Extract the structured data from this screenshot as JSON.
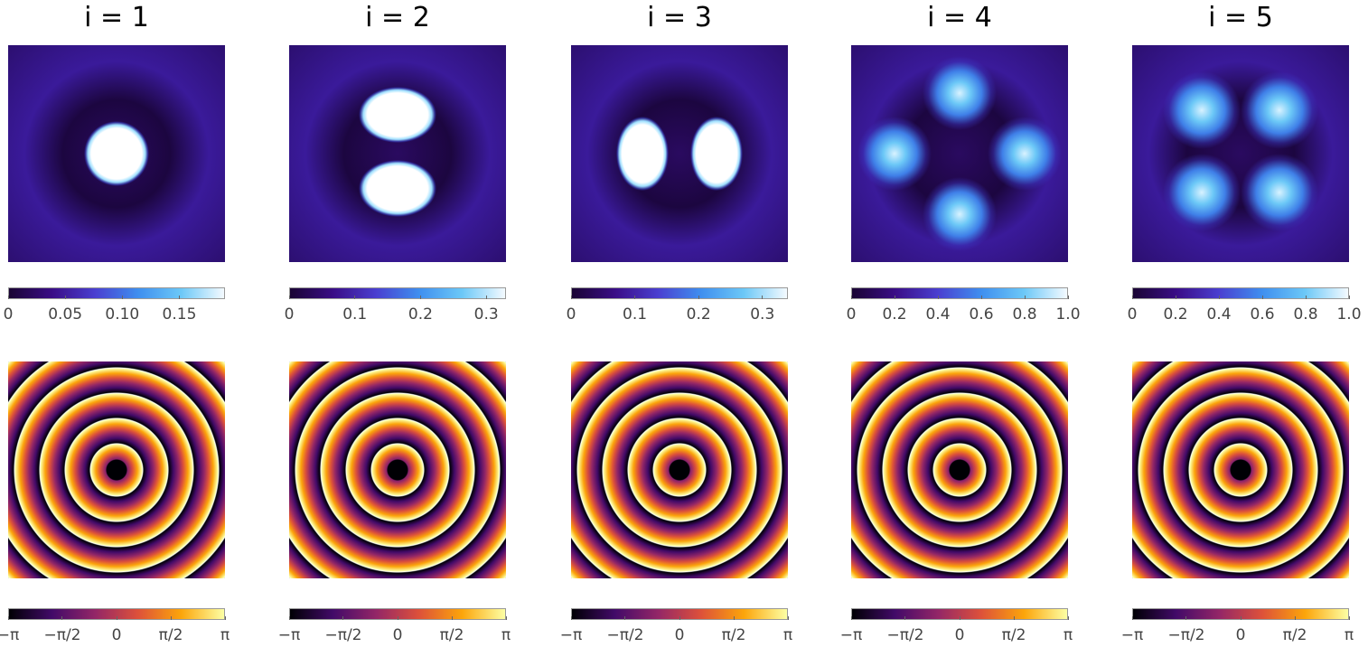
{
  "chart_data": [
    {
      "type": "heatmap",
      "title": "i = 1",
      "intensity": {
        "clim": [
          0,
          0.19
        ],
        "cticks": [
          0,
          {
            "value": 0.05,
            "label": "0.05"
          },
          {
            "value": 0.1,
            "label": "0.10"
          },
          {
            "value": 0.15,
            "label": "0.15"
          }
        ]
      },
      "phase": {
        "clim": [
          -3.14159,
          3.14159
        ],
        "cticks": [
          {
            "value": -3.14159,
            "label": "−π"
          },
          {
            "value": -1.5708,
            "label": "−π/2"
          },
          0,
          {
            "value": 1.5708,
            "label": "π/2"
          },
          {
            "value": 3.14159,
            "label": "π"
          }
        ]
      }
    },
    {
      "type": "heatmap",
      "title": "i = 2",
      "intensity": {
        "clim": [
          0,
          0.33
        ],
        "cticks": [
          0,
          0.1,
          0.2,
          0.3
        ]
      },
      "phase": {
        "clim": [
          -3.14159,
          3.14159
        ],
        "cticks": [
          {
            "value": -3.14159,
            "label": "−π"
          },
          {
            "value": -1.5708,
            "label": "−π/2"
          },
          0,
          {
            "value": 1.5708,
            "label": "π/2"
          },
          {
            "value": 3.14159,
            "label": "π"
          }
        ]
      }
    },
    {
      "type": "heatmap",
      "title": "i = 3",
      "intensity": {
        "clim": [
          0,
          0.34
        ],
        "cticks": [
          0,
          0.1,
          0.2,
          0.3
        ]
      },
      "phase": {
        "clim": [
          -3.14159,
          3.14159
        ],
        "cticks": [
          {
            "value": -3.14159,
            "label": "−π"
          },
          {
            "value": -1.5708,
            "label": "−π/2"
          },
          0,
          {
            "value": 1.5708,
            "label": "π/2"
          },
          {
            "value": 3.14159,
            "label": "π"
          }
        ]
      }
    },
    {
      "type": "heatmap",
      "title": "i = 4",
      "intensity": {
        "clim": [
          0,
          1
        ],
        "cticks": [
          0,
          0.2,
          0.4,
          0.6,
          0.8,
          {
            "value": 1,
            "label": "1.0"
          }
        ]
      },
      "phase": {
        "clim": [
          -3.14159,
          3.14159
        ],
        "cticks": [
          {
            "value": -3.14159,
            "label": "−π"
          },
          {
            "value": -1.5708,
            "label": "−π/2"
          },
          0,
          {
            "value": 1.5708,
            "label": "π/2"
          },
          {
            "value": 3.14159,
            "label": "π"
          }
        ]
      }
    },
    {
      "type": "heatmap",
      "title": "i = 5",
      "intensity": {
        "clim": [
          0,
          1
        ],
        "cticks": [
          0,
          0.2,
          0.4,
          0.6,
          0.8,
          {
            "value": 1,
            "label": "1.0"
          }
        ]
      },
      "phase": {
        "clim": [
          -3.14159,
          3.14159
        ],
        "cticks": [
          {
            "value": -3.14159,
            "label": "−π"
          },
          {
            "value": -1.5708,
            "label": "−π/2"
          },
          0,
          {
            "value": 1.5708,
            "label": "π/2"
          },
          {
            "value": 3.14159,
            "label": "π"
          }
        ]
      }
    }
  ]
}
